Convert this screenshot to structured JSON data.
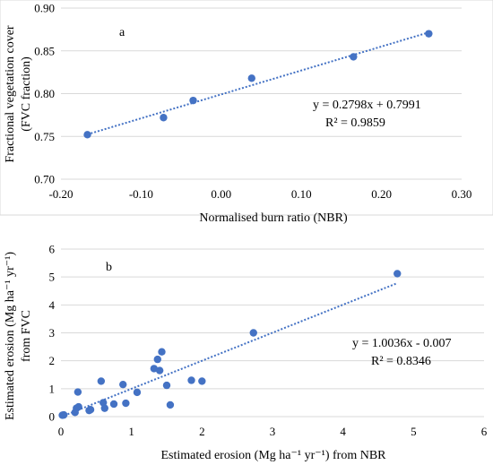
{
  "chart_data": [
    {
      "type": "scatter",
      "panel_label": "a",
      "xlabel": "Normalised burn ratio (NBR)",
      "ylabel_line1": "Fractional vegetation cover",
      "ylabel_line2": "(FVC fraction)",
      "xlim": [
        -0.2,
        0.3
      ],
      "ylim": [
        0.7,
        0.9
      ],
      "x_ticks": [
        -0.2,
        -0.1,
        0.0,
        0.1,
        0.2,
        0.3
      ],
      "x_tick_labels": [
        "-0.20",
        "-0.10",
        "0.00",
        "0.10",
        "0.20",
        "0.30"
      ],
      "y_ticks": [
        0.7,
        0.75,
        0.8,
        0.85,
        0.9
      ],
      "y_tick_labels": [
        "0.70",
        "0.75",
        "0.80",
        "0.85",
        "0.90"
      ],
      "grid": "horizontal",
      "marker_color": "#4472C4",
      "trendline": {
        "slope": 0.2798,
        "intercept": 0.7991,
        "x_range": [
          -0.167,
          0.259
        ]
      },
      "equation": "y = 0.2798x + 0.7991",
      "r_squared": "R² = 0.9859",
      "points": [
        {
          "x": -0.167,
          "y": 0.752
        },
        {
          "x": -0.072,
          "y": 0.772
        },
        {
          "x": -0.035,
          "y": 0.792
        },
        {
          "x": 0.038,
          "y": 0.818
        },
        {
          "x": 0.165,
          "y": 0.843
        },
        {
          "x": 0.259,
          "y": 0.87
        }
      ]
    },
    {
      "type": "scatter",
      "panel_label": "b",
      "xlabel": "Estimated erosion (Mg ha⁻¹ yr⁻¹) from NBR",
      "ylabel_line1": "Estimated erosion (Mg ha⁻¹ yr⁻¹)",
      "ylabel_line2": "from FVC",
      "xlim": [
        0,
        6
      ],
      "ylim": [
        0,
        6
      ],
      "x_ticks": [
        0,
        1,
        2,
        3,
        4,
        5,
        6
      ],
      "x_tick_labels": [
        "0",
        "1",
        "2",
        "3",
        "4",
        "5",
        "6"
      ],
      "y_ticks": [
        0,
        1,
        2,
        3,
        4,
        5,
        6
      ],
      "y_tick_labels": [
        "0",
        "1",
        "2",
        "3",
        "4",
        "5",
        "6"
      ],
      "grid": "horizontal",
      "marker_color": "#4472C4",
      "trendline": {
        "slope": 1.0036,
        "intercept": -0.007,
        "x_range": [
          0,
          4.77
        ]
      },
      "equation": "y = 1.0036x - 0.007",
      "r_squared": "R² = 0.8346",
      "points": [
        {
          "x": 0.02,
          "y": 0.05
        },
        {
          "x": 0.04,
          "y": 0.06
        },
        {
          "x": 0.2,
          "y": 0.15
        },
        {
          "x": 0.22,
          "y": 0.3
        },
        {
          "x": 0.24,
          "y": 0.88
        },
        {
          "x": 0.25,
          "y": 0.35
        },
        {
          "x": 0.4,
          "y": 0.22
        },
        {
          "x": 0.42,
          "y": 0.25
        },
        {
          "x": 0.57,
          "y": 1.27
        },
        {
          "x": 0.6,
          "y": 0.5
        },
        {
          "x": 0.62,
          "y": 0.3
        },
        {
          "x": 0.75,
          "y": 0.45
        },
        {
          "x": 0.88,
          "y": 1.15
        },
        {
          "x": 0.92,
          "y": 0.48
        },
        {
          "x": 1.08,
          "y": 0.87
        },
        {
          "x": 1.32,
          "y": 1.72
        },
        {
          "x": 1.37,
          "y": 2.05
        },
        {
          "x": 1.4,
          "y": 1.65
        },
        {
          "x": 1.43,
          "y": 2.32
        },
        {
          "x": 1.5,
          "y": 1.12
        },
        {
          "x": 1.55,
          "y": 0.42
        },
        {
          "x": 1.85,
          "y": 1.3
        },
        {
          "x": 2.0,
          "y": 1.27
        },
        {
          "x": 2.73,
          "y": 3.0
        },
        {
          "x": 4.77,
          "y": 5.12
        }
      ]
    }
  ]
}
